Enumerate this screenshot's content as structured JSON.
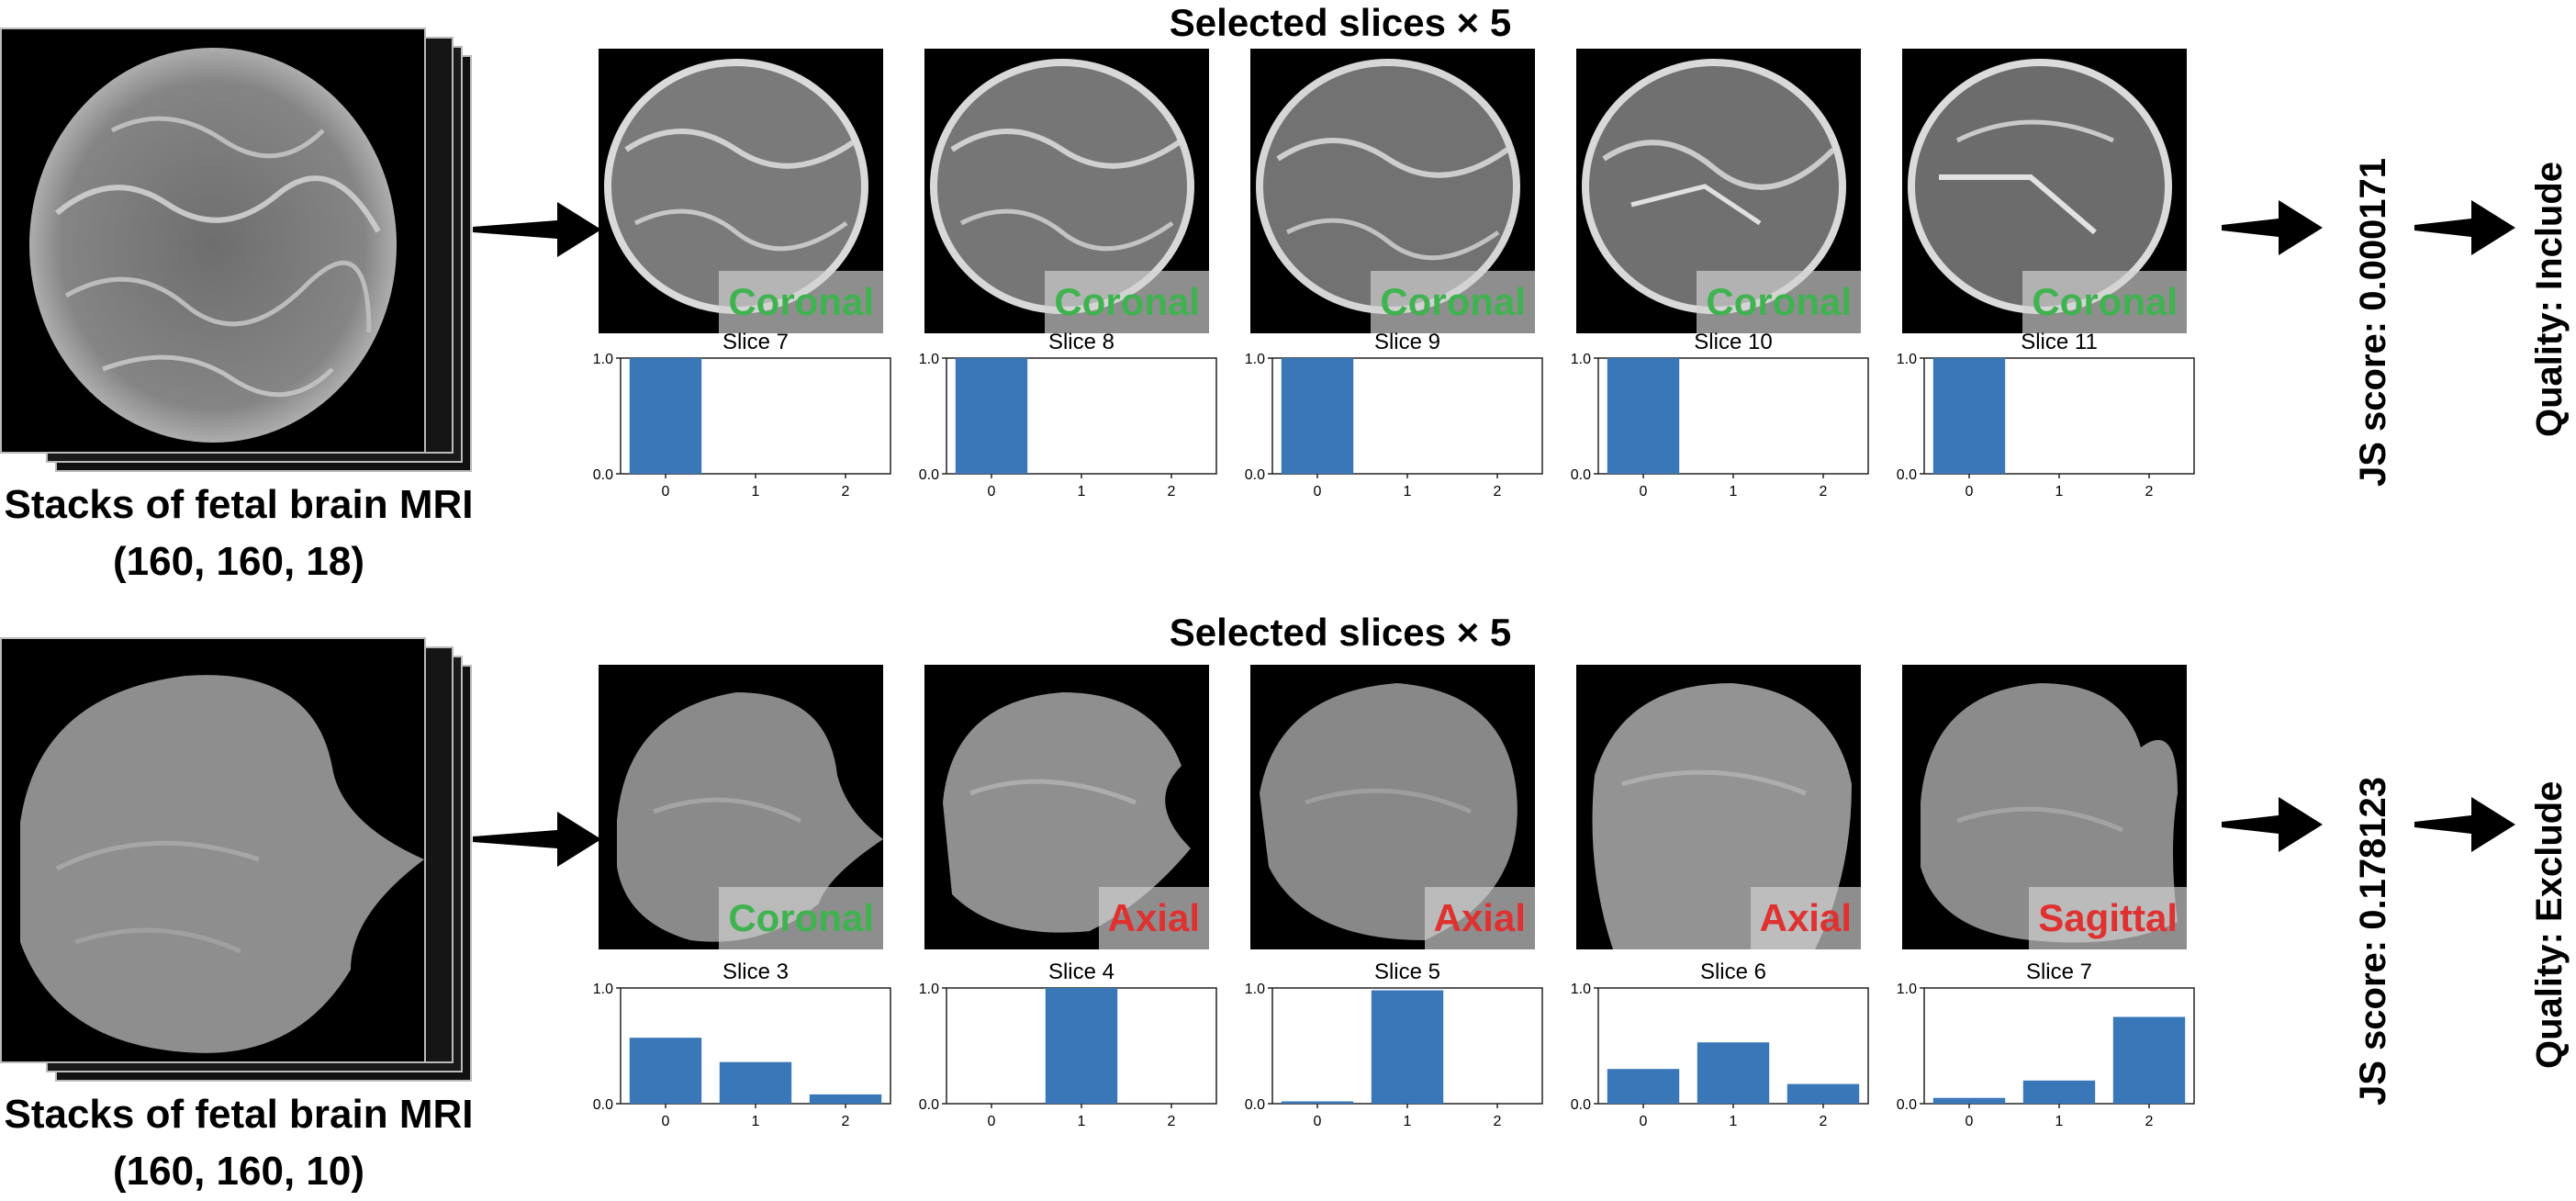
{
  "rows": [
    {
      "stack_label_line1": "Stacks of fetal brain MRI",
      "stack_label_line2": "(160, 160, 18)",
      "selected_title": "Selected slices × 5",
      "js_score": "JS score: 0.000171",
      "quality_prefix": "Quality: ",
      "quality_value": "Include",
      "quality_color": "#3fb34f",
      "slices": [
        {
          "orientation": "Coronal",
          "orientation_color": "green",
          "plot_title": "Slice 7",
          "probs": [
            1.0,
            0.0,
            0.0
          ]
        },
        {
          "orientation": "Coronal",
          "orientation_color": "green",
          "plot_title": "Slice 8",
          "probs": [
            1.0,
            0.0,
            0.0
          ]
        },
        {
          "orientation": "Coronal",
          "orientation_color": "green",
          "plot_title": "Slice 9",
          "probs": [
            1.0,
            0.0,
            0.0
          ]
        },
        {
          "orientation": "Coronal",
          "orientation_color": "green",
          "plot_title": "Slice 10",
          "probs": [
            1.0,
            0.0,
            0.0
          ]
        },
        {
          "orientation": "Coronal",
          "orientation_color": "green",
          "plot_title": "Slice 11",
          "probs": [
            1.0,
            0.0,
            0.0
          ]
        }
      ]
    },
    {
      "stack_label_line1": "Stacks of fetal brain MRI",
      "stack_label_line2": "(160, 160, 10)",
      "selected_title": "Selected slices × 5",
      "js_score": "JS score: 0.178123",
      "quality_prefix": "Quality: ",
      "quality_value": "Exclude",
      "quality_color": "#e03131",
      "slices": [
        {
          "orientation": "Coronal",
          "orientation_color": "green",
          "plot_title": "Slice 3",
          "probs": [
            0.57,
            0.36,
            0.08
          ]
        },
        {
          "orientation": "Axial",
          "orientation_color": "red",
          "plot_title": "Slice 4",
          "probs": [
            0.0,
            1.0,
            0.0
          ]
        },
        {
          "orientation": "Axial",
          "orientation_color": "red",
          "plot_title": "Slice 5",
          "probs": [
            0.02,
            0.98,
            0.0
          ]
        },
        {
          "orientation": "Axial",
          "orientation_color": "red",
          "plot_title": "Slice 6",
          "probs": [
            0.3,
            0.53,
            0.17
          ]
        },
        {
          "orientation": "Sagittal",
          "orientation_color": "red",
          "plot_title": "Slice 7",
          "probs": [
            0.05,
            0.2,
            0.75
          ]
        }
      ]
    }
  ],
  "chart_data": {
    "type": "bar",
    "categories": [
      "0",
      "1",
      "2"
    ],
    "ylim": [
      0.0,
      1.0
    ],
    "yticks": [
      "0.0",
      "1.0"
    ],
    "bar_color": "#3a77b8"
  }
}
